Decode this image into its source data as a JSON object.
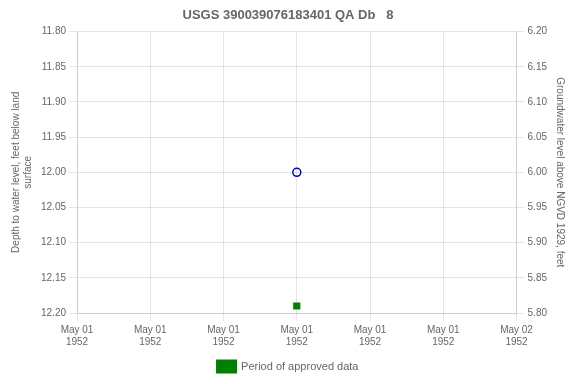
{
  "chart_data": {
    "type": "scatter",
    "title": "USGS 390039076183401 QA Db   8",
    "ylabel": "Depth to water level, feet below land\nsurface",
    "y2label": "Groundwater level above NGVD 1929, feet",
    "categories": [
      "May 01\n1952",
      "May 01\n1952",
      "May 01\n1952",
      "May 01\n1952",
      "May 01\n1952",
      "May 01\n1952",
      "May 02\n1952"
    ],
    "series": [
      {
        "color": "#0000cc",
        "marker": "circle_open",
        "values": [
          null,
          null,
          null,
          12.0,
          null,
          null,
          null
        ]
      },
      {
        "name": "Period of approved data",
        "color": "#008000",
        "marker": "square",
        "values": [
          null,
          null,
          null,
          12.19,
          null,
          null,
          null
        ]
      }
    ],
    "ylim": [
      12.2,
      11.8
    ],
    "yticks": [
      {
        "value": 11.8,
        "label": "11.80"
      },
      11.85,
      {
        "value": 11.9,
        "label": "11.90"
      },
      11.95,
      {
        "value": 12.0,
        "label": "12.00"
      },
      12.05,
      {
        "value": 12.1,
        "label": "12.10"
      },
      12.15,
      {
        "value": 12.2,
        "label": "12.20"
      }
    ],
    "y2lim": [
      5.8,
      6.2
    ],
    "y2ticks": [
      {
        "value": 5.8,
        "label": "5.80"
      },
      5.85,
      {
        "value": 5.9,
        "label": "5.90"
      },
      5.95,
      {
        "value": 6.0,
        "label": "6.00"
      },
      6.05,
      {
        "value": 6.1,
        "label": "6.10"
      },
      6.15,
      {
        "value": 6.2,
        "label": "6.20"
      }
    ],
    "grid": true,
    "legend": "bottom"
  }
}
